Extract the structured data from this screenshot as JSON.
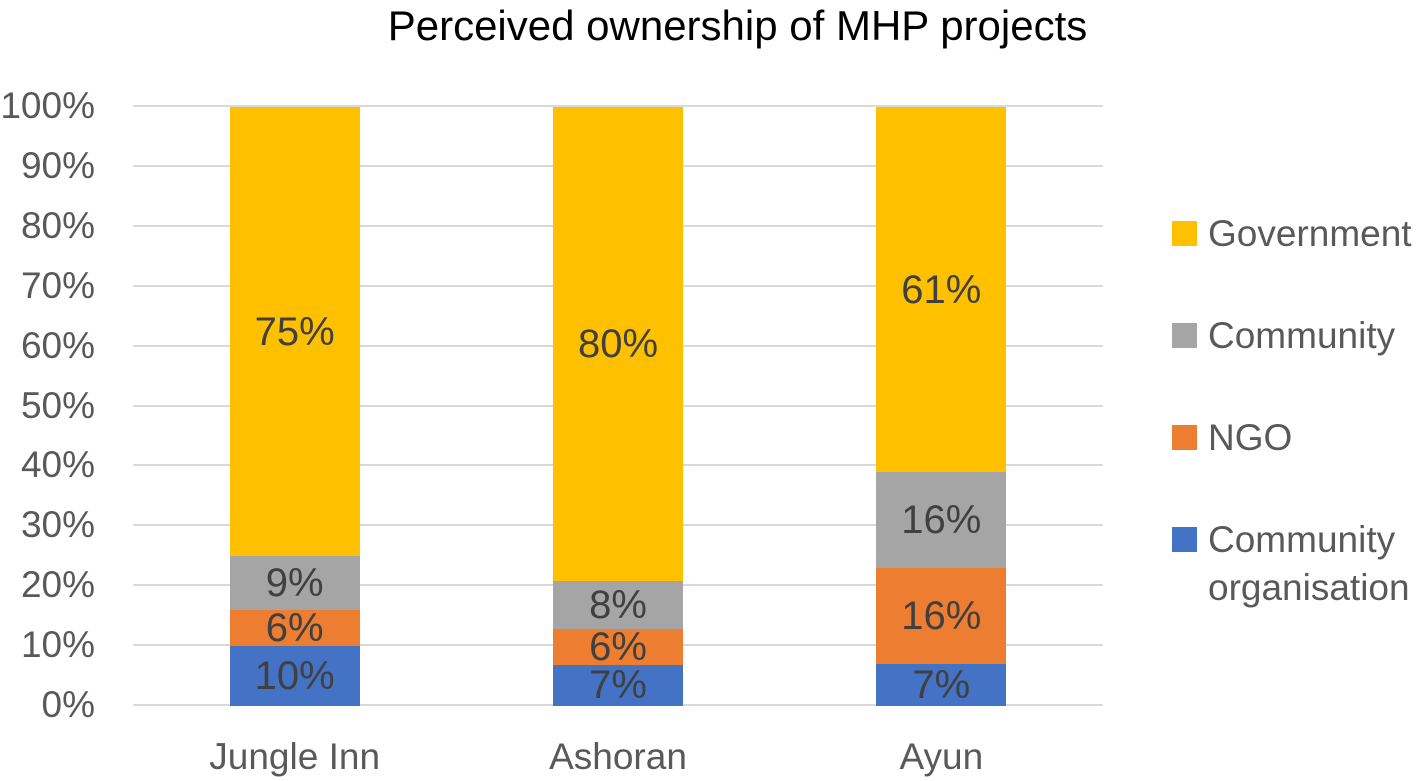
{
  "title": "Perceived ownership of MHP projects",
  "chart_data": {
    "type": "bar",
    "stacked": true,
    "title": "Perceived ownership of MHP projects",
    "categories": [
      "Jungle Inn",
      "Ashoran",
      "Ayun"
    ],
    "series": [
      {
        "name": "Community organisation",
        "color": "#4472C4",
        "values": [
          10,
          7,
          7
        ],
        "labels": [
          "10%",
          "7%",
          "7%"
        ]
      },
      {
        "name": "NGO",
        "color": "#ED7D31",
        "values": [
          6,
          6,
          16
        ],
        "labels": [
          "6%",
          "6%",
          "16%"
        ]
      },
      {
        "name": "Community",
        "color": "#A5A5A5",
        "values": [
          9,
          8,
          16
        ],
        "labels": [
          "9%",
          "8%",
          "16%"
        ]
      },
      {
        "name": "Government",
        "color": "#FFC000",
        "values": [
          75,
          80,
          61
        ],
        "labels": [
          "75%",
          "80%",
          "61%"
        ]
      }
    ],
    "y_axis": {
      "min": 0,
      "max": 100,
      "ticks": [
        "0%",
        "10%",
        "20%",
        "30%",
        "40%",
        "50%",
        "60%",
        "70%",
        "80%",
        "90%",
        "100%"
      ]
    },
    "legend": {
      "position": "right",
      "order": [
        "Government",
        "Community",
        "NGO",
        "Community organisation"
      ]
    },
    "grid": true,
    "colors": {
      "gridline": "#D9D9D9",
      "axis_text": "#595959",
      "data_label": "#404040",
      "title_text": "#000000",
      "background": "#FFFFFF"
    }
  }
}
